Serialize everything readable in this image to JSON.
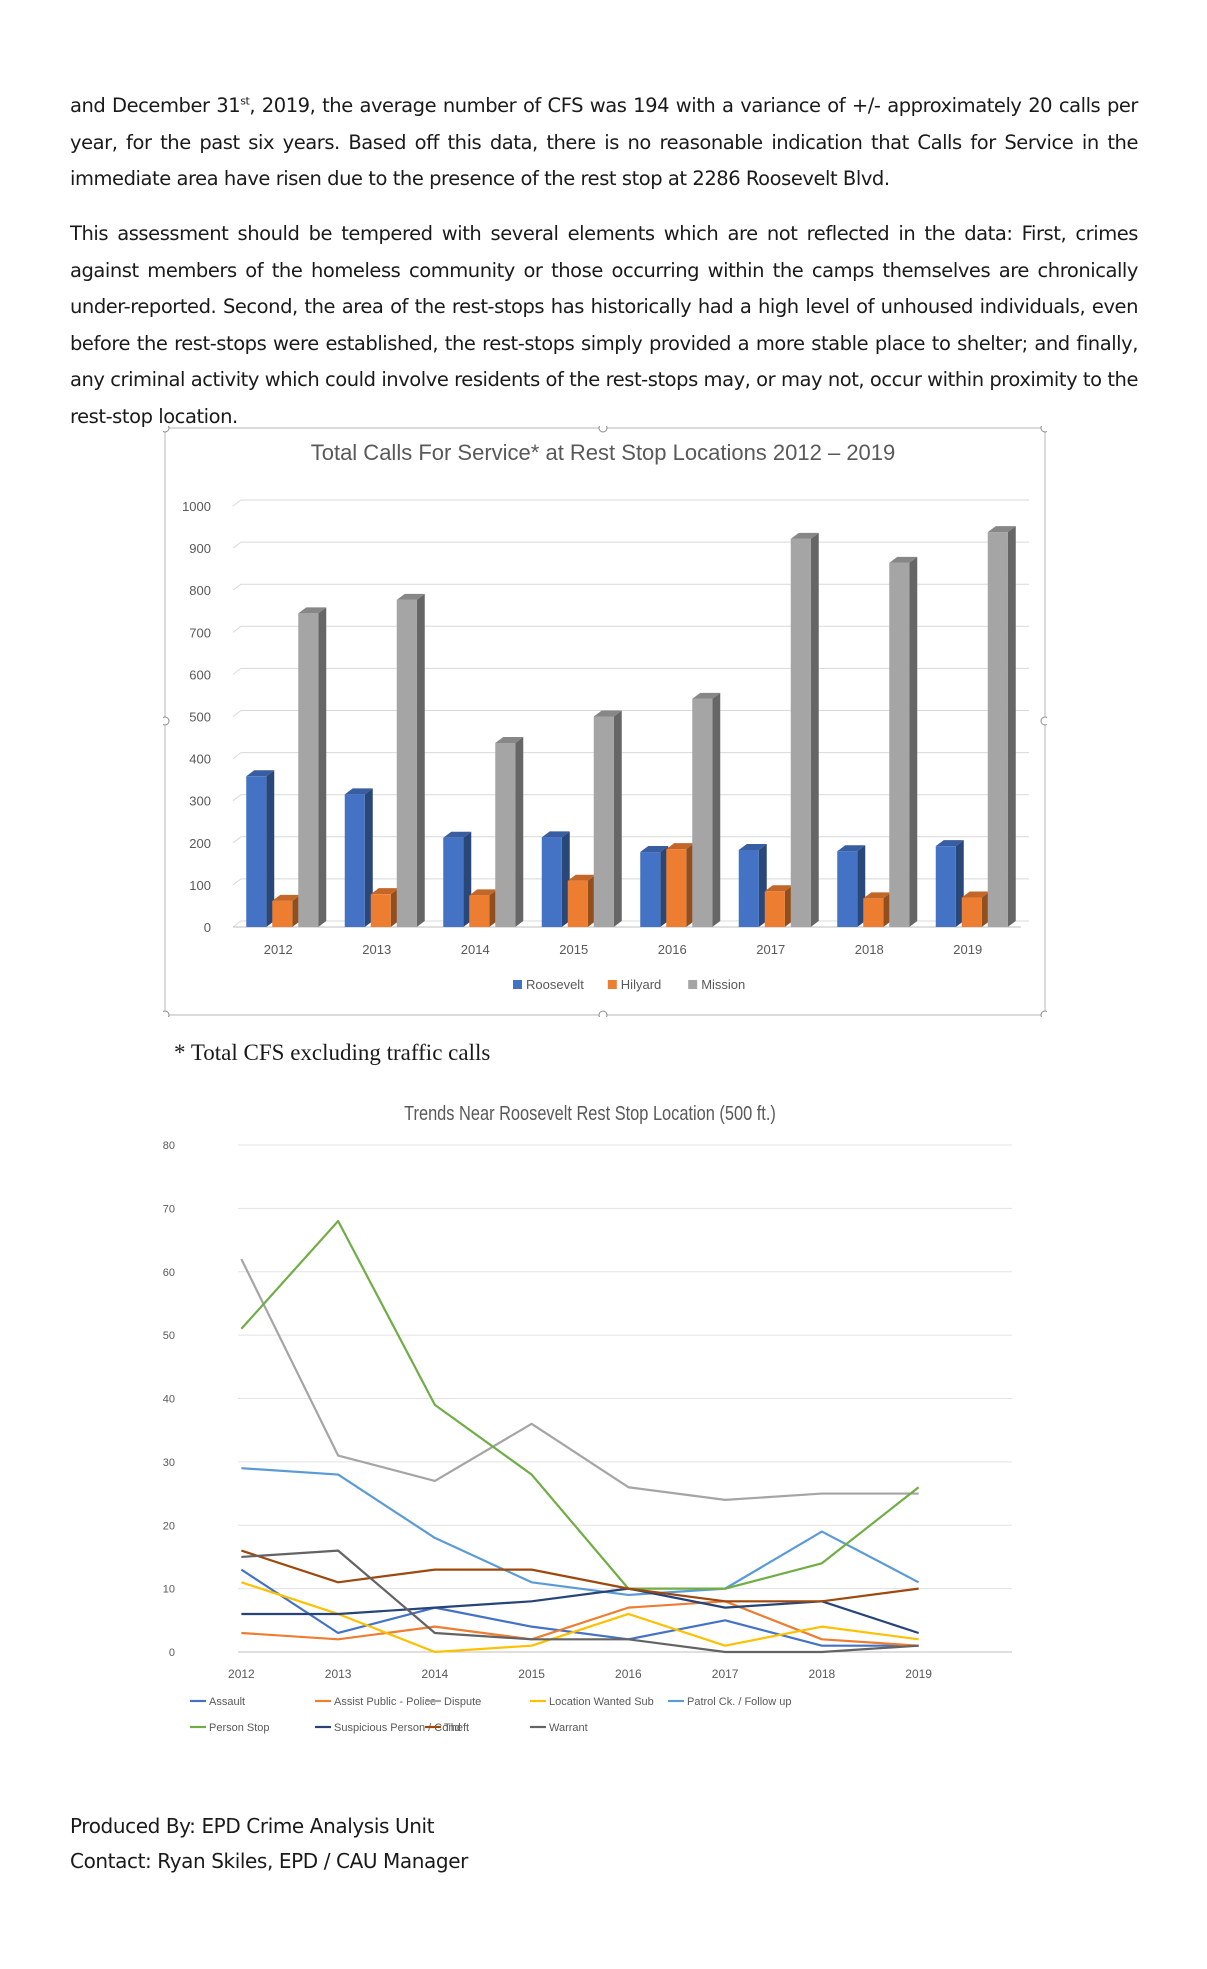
{
  "paragraphs": {
    "p1_a": "and December 31",
    "p1_sup": "st",
    "p1_b": ", 2019, the average number of CFS was 194 with a variance of +/- approximately 20 calls per year, for the past six years.  Based off this data, there is no reasonable indication that Calls for Service in the immediate area have risen due to the presence of the rest stop at 2286 Roosevelt Blvd.",
    "p2": "This assessment should be tempered with several elements which are not reflected in the data: First, crimes against members of the homeless community or those occurring within the camps themselves are chronically under-reported. Second, the area of the rest-stops has historically had a high level of unhoused individuals, even before the rest-stops were established, the rest-stops simply provided a more stable place to shelter; and finally, any criminal activity which could involve residents of the rest-stops may, or may not, occur within proximity to the rest-stop location."
  },
  "note": "* Total CFS excluding traffic calls",
  "footer": {
    "produced_by": "Produced By: EPD Crime Analysis Unit",
    "contact": "Contact: Ryan Skiles, EPD / CAU Manager"
  },
  "chart_data": [
    {
      "type": "bar",
      "title": "Total Calls For Service* at Rest Stop Locations 2012 – 2019",
      "categories": [
        "2012",
        "2013",
        "2014",
        "2015",
        "2016",
        "2017",
        "2018",
        "2019"
      ],
      "ylim": [
        0,
        1000
      ],
      "yticks": [
        0,
        100,
        200,
        300,
        400,
        500,
        600,
        700,
        800,
        900,
        1000
      ],
      "grid": true,
      "legend": "bottom",
      "series": [
        {
          "name": "Roosevelt",
          "color": "#4472c4",
          "values": [
            358,
            315,
            212,
            213,
            178,
            183,
            180,
            192
          ]
        },
        {
          "name": "Hilyard",
          "color": "#ed7d31",
          "values": [
            62,
            78,
            75,
            110,
            185,
            85,
            68,
            70
          ]
        },
        {
          "name": "Mission",
          "color": "#a5a5a5",
          "values": [
            745,
            777,
            437,
            500,
            542,
            922,
            865,
            938
          ]
        }
      ]
    },
    {
      "type": "line",
      "title": "Trends Near Roosevelt Rest Stop Location (500 ft.)",
      "categories": [
        "2012",
        "2013",
        "2014",
        "2015",
        "2016",
        "2017",
        "2018",
        "2019"
      ],
      "ylim": [
        0,
        80
      ],
      "yticks": [
        0,
        10,
        20,
        30,
        40,
        50,
        60,
        70,
        80
      ],
      "grid": true,
      "legend": "bottom",
      "series": [
        {
          "name": "Assault",
          "color": "#4472c4",
          "values": [
            13,
            3,
            7,
            4,
            2,
            5,
            1,
            1
          ]
        },
        {
          "name": "Assist Public - Police",
          "color": "#ed7d31",
          "values": [
            3,
            2,
            4,
            2,
            7,
            8,
            2,
            1
          ]
        },
        {
          "name": "Dispute",
          "color": "#a5a5a5",
          "values": [
            62,
            31,
            27,
            36,
            26,
            24,
            25,
            25
          ]
        },
        {
          "name": "Location Wanted Sub",
          "color": "#ffc000",
          "values": [
            11,
            6,
            0,
            1,
            6,
            1,
            4,
            2
          ]
        },
        {
          "name": "Patrol Ck. / Follow up",
          "color": "#5b9bd5",
          "values": [
            29,
            28,
            18,
            11,
            9,
            10,
            19,
            11
          ]
        },
        {
          "name": "Person Stop",
          "color": "#70ad47",
          "values": [
            51,
            68,
            39,
            28,
            10,
            10,
            14,
            26
          ]
        },
        {
          "name": "Suspicious Person / Cond",
          "color": "#264478",
          "values": [
            6,
            6,
            7,
            8,
            10,
            7,
            8,
            3
          ]
        },
        {
          "name": "Theft",
          "color": "#9e480e",
          "values": [
            16,
            11,
            13,
            13,
            10,
            8,
            8,
            10
          ]
        },
        {
          "name": "Warrant",
          "color": "#636363",
          "values": [
            15,
            16,
            3,
            2,
            2,
            0,
            0,
            1
          ]
        }
      ]
    }
  ]
}
